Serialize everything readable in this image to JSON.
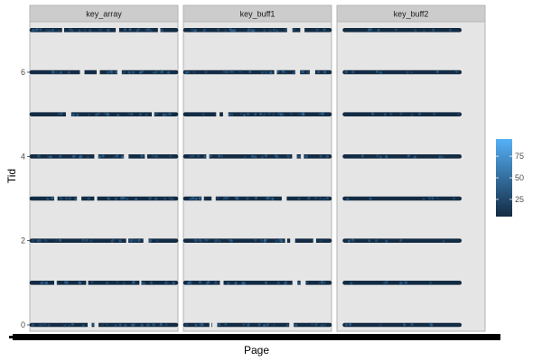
{
  "chart_data": {
    "type": "scatter",
    "faceted": true,
    "facets": [
      "key_array",
      "key_buff1",
      "key_buff2"
    ],
    "xlabel": "Page",
    "ylabel": "Tid",
    "y_ticks": [
      0,
      2,
      4,
      6
    ],
    "ylim": [
      -0.15,
      7.2
    ],
    "tid_levels": [
      0,
      1,
      2,
      3,
      4,
      5,
      6,
      7
    ],
    "x_extent": [
      {
        "facet": "key_array",
        "start": 0.0,
        "end": 1.0
      },
      {
        "facet": "key_buff1",
        "start": 0.0,
        "end": 1.0
      },
      {
        "facet": "key_buff2",
        "start": 0.04,
        "end": 0.84
      }
    ],
    "color_legend": {
      "ticks": [
        25,
        50,
        75
      ],
      "range": [
        5,
        95
      ],
      "low_color": "#132B43",
      "high_color": "#56B1F7"
    },
    "grid": true,
    "legend_position": "right"
  },
  "colors": {
    "panel_bg": "#e5e5e5",
    "strip_bg": "#cccccc",
    "point_dark": "#132B43"
  }
}
